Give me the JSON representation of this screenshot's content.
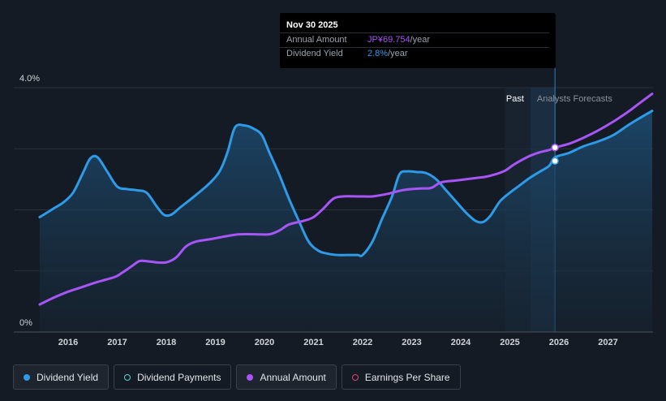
{
  "chart_data": {
    "type": "line",
    "x_ticks": [
      "2016",
      "2017",
      "2018",
      "2019",
      "2020",
      "2021",
      "2022",
      "2023",
      "2024",
      "2025",
      "2026",
      "2027"
    ],
    "y_ticks": [
      "4.0%",
      "0%"
    ],
    "ylim": [
      0,
      4.0
    ],
    "grid": true,
    "past_label": "Past",
    "forecast_label": "Analysts Forecasts",
    "forecast_start": 2025.42,
    "series": [
      {
        "name": "Dividend Yield",
        "color": "#2e9be8",
        "x": [
          2015.42,
          2015.7,
          2015.9,
          2016.1,
          2016.3,
          2016.45,
          2016.6,
          2016.8,
          2017.0,
          2017.2,
          2017.4,
          2017.6,
          2017.8,
          2017.95,
          2018.1,
          2018.3,
          2018.6,
          2018.9,
          2019.1,
          2019.25,
          2019.4,
          2019.6,
          2019.8,
          2019.95,
          2020.1,
          2020.3,
          2020.5,
          2020.7,
          2020.9,
          2021.1,
          2021.3,
          2021.5,
          2021.7,
          2021.9,
          2022.0,
          2022.2,
          2022.4,
          2022.6,
          2022.75,
          2022.9,
          2023.1,
          2023.3,
          2023.5,
          2023.7,
          2023.9,
          2024.1,
          2024.3,
          2024.45,
          2024.6,
          2024.8,
          2025.0,
          2025.2,
          2025.4,
          2025.6,
          2025.8,
          2025.92,
          2026.2,
          2026.5,
          2026.8,
          2027.1,
          2027.4,
          2027.6,
          2027.9
        ],
        "values": [
          1.88,
          2.02,
          2.12,
          2.28,
          2.6,
          2.84,
          2.86,
          2.62,
          2.38,
          2.34,
          2.32,
          2.28,
          2.06,
          1.92,
          1.92,
          2.05,
          2.24,
          2.45,
          2.65,
          2.95,
          3.35,
          3.38,
          3.32,
          3.22,
          2.94,
          2.58,
          2.18,
          1.82,
          1.48,
          1.33,
          1.28,
          1.26,
          1.26,
          1.26,
          1.26,
          1.48,
          1.86,
          2.22,
          2.58,
          2.63,
          2.62,
          2.6,
          2.5,
          2.32,
          2.14,
          1.96,
          1.82,
          1.8,
          1.9,
          2.14,
          2.28,
          2.4,
          2.52,
          2.62,
          2.72,
          2.86,
          2.93,
          3.04,
          3.12,
          3.22,
          3.38,
          3.48,
          3.62
        ]
      },
      {
        "name": "Annual Amount",
        "color": "#a855f7",
        "x": [
          2015.42,
          2015.7,
          2016.0,
          2016.3,
          2016.6,
          2016.95,
          2017.1,
          2017.3,
          2017.45,
          2017.6,
          2017.8,
          2018.0,
          2018.2,
          2018.4,
          2018.6,
          2018.9,
          2019.1,
          2019.3,
          2019.5,
          2019.8,
          2020.1,
          2020.3,
          2020.5,
          2020.8,
          2021.0,
          2021.2,
          2021.4,
          2021.6,
          2021.9,
          2022.0,
          2022.2,
          2022.5,
          2022.8,
          2023.0,
          2023.2,
          2023.4,
          2023.6,
          2023.9,
          2024.1,
          2024.3,
          2024.5,
          2024.7,
          2024.9,
          2025.1,
          2025.4,
          2025.6,
          2025.8,
          2025.92,
          2026.2,
          2026.5,
          2026.8,
          2027.1,
          2027.4,
          2027.6,
          2027.9
        ],
        "values": [
          0.45,
          0.56,
          0.66,
          0.74,
          0.82,
          0.9,
          0.97,
          1.08,
          1.16,
          1.16,
          1.14,
          1.14,
          1.22,
          1.4,
          1.48,
          1.52,
          1.55,
          1.58,
          1.6,
          1.6,
          1.6,
          1.66,
          1.76,
          1.82,
          1.88,
          2.02,
          2.18,
          2.22,
          2.22,
          2.22,
          2.22,
          2.26,
          2.32,
          2.34,
          2.35,
          2.36,
          2.45,
          2.48,
          2.5,
          2.52,
          2.54,
          2.58,
          2.64,
          2.75,
          2.88,
          2.94,
          2.98,
          3.02,
          3.08,
          3.18,
          3.3,
          3.44,
          3.6,
          3.72,
          3.9
        ]
      }
    ],
    "dividend_payments_series": "Dividend Payments",
    "eps_series": "Earnings Per Share"
  },
  "tooltip": {
    "date": "Nov 30 2025",
    "annual_label": "Annual Amount",
    "annual_value": "JP¥69.754",
    "annual_unit": "/year",
    "yield_label": "Dividend Yield",
    "yield_value": "2.8%",
    "yield_unit": "/year"
  },
  "legend": [
    {
      "label": "Dividend Yield",
      "color": "#2e9be8",
      "style": "filled"
    },
    {
      "label": "Dividend Payments",
      "color": "#5fd3c6",
      "style": "ring"
    },
    {
      "label": "Annual Amount",
      "color": "#a855f7",
      "style": "filled"
    },
    {
      "label": "Earnings Per Share",
      "color": "#e0457b",
      "style": "ring"
    }
  ]
}
